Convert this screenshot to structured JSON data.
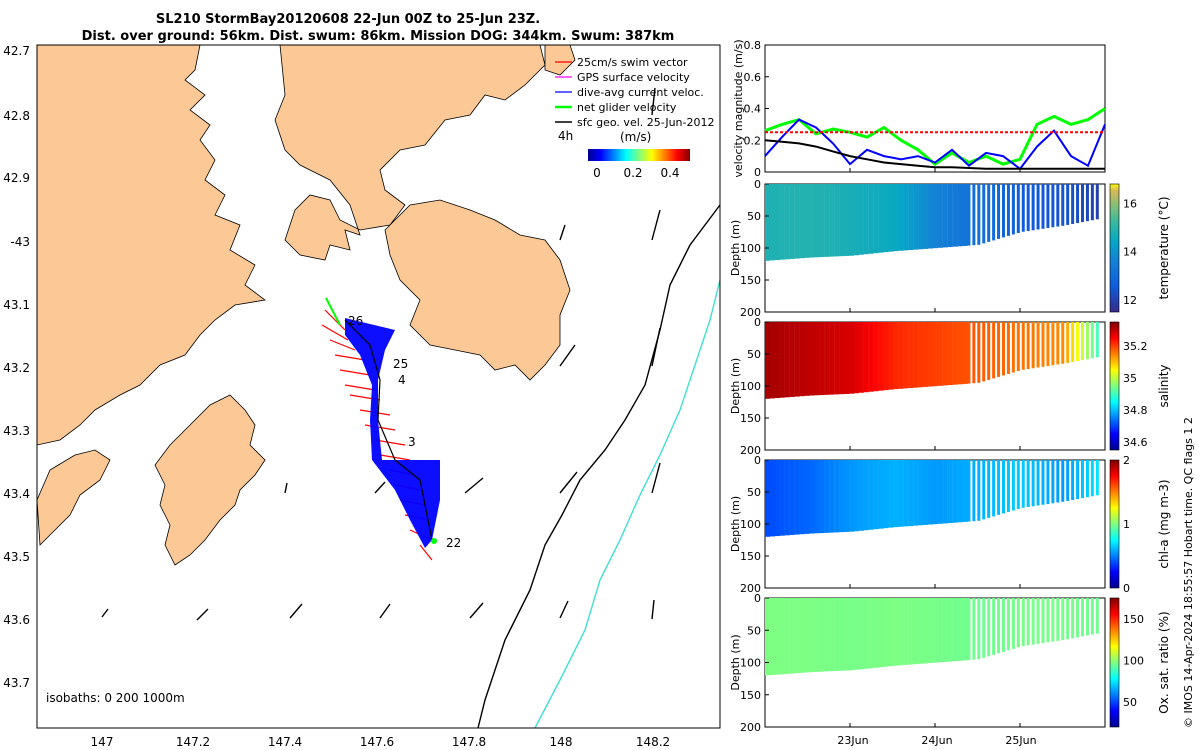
{
  "title": {
    "line1": "SL210 StormBay20120608 22-Jun 00Z to 25-Jun 23Z.",
    "line2": "Dist. over ground: 56km. Dist. swum: 86km. Mission DOG: 344km. Swum: 387km"
  },
  "map": {
    "legend": [
      {
        "label": "25cm/s swim vector",
        "color": "#ff0000"
      },
      {
        "label": "GPS surface velocity",
        "color": "#ff00ff"
      },
      {
        "label": "dive-avg current veloc.",
        "color": "#0000ff"
      },
      {
        "label": "net glider velocity",
        "color": "#00ff00"
      },
      {
        "label": "sfc geo. vel. 25-Jun-2012",
        "color": "#000000"
      }
    ],
    "colorbar": {
      "label": "(m/s)",
      "ticks": [
        "0",
        "0.2",
        "0.4"
      ],
      "note": "4h"
    },
    "isobaths_text": "isobaths: 0   200  1000m",
    "day_labels": [
      "26",
      "25",
      "4",
      "3",
      "22"
    ],
    "lat_ticks": [
      "42.7",
      "42.8",
      "42.9",
      "-43",
      "43.1",
      "43.2",
      "43.3",
      "43.4",
      "43.5",
      "43.6",
      "43.7"
    ],
    "lon_ticks": [
      "147",
      "147.2",
      "147.4",
      "147.6",
      "147.8",
      "148",
      "148.2"
    ],
    "colors": {
      "land": "#fbc896",
      "sea": "#ffffff",
      "track": "#0000ff",
      "swim": "#ff0000",
      "isobath200": "#000000",
      "isobath1000": "#40e0d0"
    }
  },
  "chart_data": [
    {
      "type": "line",
      "ylabel": "velocity magnitude (m/s)",
      "ylim": [
        0,
        0.8
      ],
      "yticks": [
        "0",
        "0.2",
        "0.4",
        "0.6",
        "0.8"
      ],
      "x_days": [
        0,
        0.2,
        0.4,
        0.6,
        0.8,
        1.0,
        1.2,
        1.4,
        1.6,
        1.8,
        2.0,
        2.2,
        2.4,
        2.6,
        2.8,
        3.0,
        3.2,
        3.4,
        3.6,
        3.8,
        4.0
      ],
      "series": [
        {
          "color": "#00ff00",
          "values": [
            0.26,
            0.3,
            0.33,
            0.24,
            0.27,
            0.25,
            0.22,
            0.28,
            0.2,
            0.14,
            0.05,
            0.12,
            0.06,
            0.1,
            0.05,
            0.08,
            0.3,
            0.35,
            0.3,
            0.33,
            0.4
          ]
        },
        {
          "color": "#0000ff",
          "values": [
            0.1,
            0.22,
            0.33,
            0.28,
            0.18,
            0.05,
            0.14,
            0.1,
            0.08,
            0.1,
            0.06,
            0.14,
            0.04,
            0.12,
            0.1,
            0.02,
            0.16,
            0.26,
            0.1,
            0.04,
            0.3
          ]
        },
        {
          "color": "#ff0000",
          "values": [
            0.25,
            0.25,
            0.25,
            0.25,
            0.25,
            0.25,
            0.25,
            0.25,
            0.25,
            0.25,
            0.25,
            0.25,
            0.25,
            0.25,
            0.25,
            0.25,
            0.25,
            0.25,
            0.25,
            0.25,
            0.25
          ]
        },
        {
          "color": "#000000",
          "values": [
            0.2,
            0.19,
            0.18,
            0.16,
            0.13,
            0.1,
            0.08,
            0.06,
            0.05,
            0.04,
            0.03,
            0.03,
            0.025,
            0.02,
            0.02,
            0.02,
            0.02,
            0.02,
            0.02,
            0.02,
            0.02
          ]
        }
      ]
    },
    {
      "type": "heatmap",
      "ylabel": "Depth (m)",
      "ylim": [
        200,
        0
      ],
      "yticks": [
        "0",
        "50",
        "100",
        "150",
        "200"
      ],
      "colorbar_label": "temperature (°C)",
      "clim": [
        11.5,
        16.8
      ],
      "cticks": [
        "12",
        "14",
        "16"
      ],
      "x_days": [
        0,
        0.5,
        1.0,
        1.5,
        2.0,
        2.5,
        3.0,
        3.5,
        3.9
      ],
      "max_depth": [
        120,
        115,
        112,
        105,
        100,
        95,
        75,
        65,
        55
      ],
      "values": [
        14.8,
        14.9,
        14.7,
        14.5,
        13.6,
        13.1,
        12.6,
        12.4,
        12.0
      ]
    },
    {
      "type": "heatmap",
      "ylabel": "Depth (m)",
      "ylim": [
        200,
        0
      ],
      "yticks": [
        "0",
        "50",
        "100",
        "150",
        "200"
      ],
      "colorbar_label": "salinity",
      "clim": [
        34.55,
        35.35
      ],
      "cticks": [
        "34.6",
        "34.8",
        "35",
        "35.2"
      ],
      "x_days": [
        0,
        0.5,
        1.0,
        1.5,
        2.0,
        2.5,
        3.0,
        3.5,
        3.9
      ],
      "max_depth": [
        120,
        115,
        112,
        105,
        100,
        95,
        75,
        65,
        55
      ],
      "values": [
        35.32,
        35.3,
        35.28,
        35.22,
        35.2,
        35.18,
        35.16,
        35.14,
        34.9
      ]
    },
    {
      "type": "heatmap",
      "ylabel": "Depth (m)",
      "ylim": [
        200,
        0
      ],
      "yticks": [
        "0",
        "50",
        "100",
        "150",
        "200"
      ],
      "colorbar_label": "chl-a (mg m-3)",
      "clim": [
        0,
        2
      ],
      "cticks": [
        "0",
        "1",
        "2"
      ],
      "x_days": [
        0,
        0.5,
        1.0,
        1.5,
        2.0,
        2.5,
        3.0,
        3.5,
        3.9
      ],
      "max_depth": [
        120,
        115,
        112,
        105,
        100,
        95,
        75,
        65,
        55
      ],
      "values": [
        0.4,
        0.45,
        0.55,
        0.6,
        0.55,
        0.6,
        0.65,
        0.55,
        0.7
      ]
    },
    {
      "type": "heatmap",
      "ylabel": "Depth (m)",
      "ylim": [
        200,
        0
      ],
      "yticks": [
        "0",
        "50",
        "100",
        "150",
        "200"
      ],
      "colorbar_label": "Ox. sat. ratio (%)",
      "clim": [
        20,
        175
      ],
      "cticks": [
        "50",
        "100",
        "150"
      ],
      "x_days": [
        0,
        0.5,
        1.0,
        1.5,
        2.0,
        2.5,
        3.0,
        3.5,
        3.9
      ],
      "max_depth": [
        120,
        115,
        112,
        105,
        100,
        95,
        75,
        65,
        55
      ],
      "values": [
        97,
        97,
        96,
        97,
        96,
        95,
        96,
        96,
        95
      ]
    }
  ],
  "x_time_ticks": [
    "23Jun",
    "24Jun",
    "25Jun"
  ],
  "side_note": "© IMOS 14-Apr-2024 18:55:57 Hobart time. QC flags 1  2"
}
